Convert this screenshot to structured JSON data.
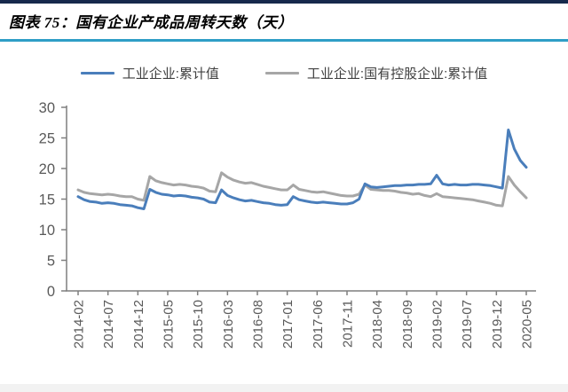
{
  "title": {
    "text": "图表 75：国有企业产成品周转天数（天）"
  },
  "colors": {
    "title_top_border": "#16294c",
    "title_underline": "#2f9ec6",
    "series_blue": "#4a7ebb",
    "series_gray": "#a6a6a6",
    "axis_line": "#7f7f7f",
    "axis_text": "#595959",
    "legend_text": "#404040",
    "bottom_strip": "#f2f2f2"
  },
  "chart_data": {
    "type": "line",
    "title": "国有企业产成品周转天数（天）",
    "legend_position": "top",
    "grid": false,
    "ylim": [
      0,
      30
    ],
    "yticks": [
      0,
      5,
      10,
      15,
      20,
      25,
      30
    ],
    "x_tick_interval": 5,
    "x_tick_labels": [
      "2014-02",
      "2014-07",
      "2014-12",
      "2015-05",
      "2015-10",
      "2016-03",
      "2016-08",
      "2017-01",
      "2017-06",
      "2017-11",
      "2018-04",
      "2018-09",
      "2019-02",
      "2019-07",
      "2019-12",
      "2020-05"
    ],
    "x": [
      "2014-02",
      "2014-03",
      "2014-04",
      "2014-05",
      "2014-06",
      "2014-07",
      "2014-08",
      "2014-09",
      "2014-10",
      "2014-11",
      "2014-12",
      "2015-01",
      "2015-02",
      "2015-03",
      "2015-04",
      "2015-05",
      "2015-06",
      "2015-07",
      "2015-08",
      "2015-09",
      "2015-10",
      "2015-11",
      "2015-12",
      "2016-01",
      "2016-02",
      "2016-03",
      "2016-04",
      "2016-05",
      "2016-06",
      "2016-07",
      "2016-08",
      "2016-09",
      "2016-10",
      "2016-11",
      "2016-12",
      "2017-01",
      "2017-02",
      "2017-03",
      "2017-04",
      "2017-05",
      "2017-06",
      "2017-07",
      "2017-08",
      "2017-09",
      "2017-10",
      "2017-11",
      "2017-12",
      "2018-01",
      "2018-02",
      "2018-03",
      "2018-04",
      "2018-05",
      "2018-06",
      "2018-07",
      "2018-08",
      "2018-09",
      "2018-10",
      "2018-11",
      "2018-12",
      "2019-01",
      "2019-02",
      "2019-03",
      "2019-04",
      "2019-05",
      "2019-06",
      "2019-07",
      "2019-08",
      "2019-09",
      "2019-10",
      "2019-11",
      "2019-12",
      "2020-01",
      "2020-02",
      "2020-03",
      "2020-04",
      "2020-05"
    ],
    "series": [
      {
        "name": "工业企业:累计值",
        "color": "#4a7ebb",
        "values": [
          15.4,
          14.9,
          14.6,
          14.5,
          14.3,
          14.4,
          14.3,
          14.1,
          14.0,
          13.9,
          13.6,
          13.4,
          16.6,
          16.1,
          15.8,
          15.7,
          15.5,
          15.6,
          15.5,
          15.3,
          15.2,
          15.0,
          14.5,
          14.4,
          16.5,
          15.6,
          15.2,
          14.9,
          14.7,
          14.8,
          14.6,
          14.4,
          14.3,
          14.1,
          14.0,
          14.1,
          15.4,
          14.9,
          14.7,
          14.5,
          14.4,
          14.5,
          14.4,
          14.3,
          14.2,
          14.2,
          14.4,
          15.0,
          17.5,
          17.0,
          16.9,
          17.0,
          17.1,
          17.2,
          17.2,
          17.3,
          17.3,
          17.4,
          17.4,
          17.5,
          18.9,
          17.5,
          17.3,
          17.4,
          17.3,
          17.3,
          17.4,
          17.4,
          17.3,
          17.2,
          17.0,
          16.8,
          26.3,
          23.2,
          21.3,
          20.2
        ]
      },
      {
        "name": "工业企业:国有控股企业:累计值",
        "color": "#a6a6a6",
        "values": [
          16.5,
          16.1,
          15.9,
          15.8,
          15.7,
          15.8,
          15.7,
          15.5,
          15.4,
          15.4,
          15.0,
          14.8,
          18.7,
          18.0,
          17.7,
          17.5,
          17.3,
          17.4,
          17.3,
          17.1,
          17.0,
          16.8,
          16.3,
          16.2,
          19.3,
          18.6,
          18.1,
          17.8,
          17.6,
          17.7,
          17.4,
          17.1,
          16.9,
          16.7,
          16.5,
          16.5,
          17.3,
          16.6,
          16.4,
          16.2,
          16.1,
          16.2,
          16.0,
          15.8,
          15.6,
          15.5,
          15.5,
          15.8,
          17.3,
          16.6,
          16.5,
          16.4,
          16.4,
          16.3,
          16.1,
          16.0,
          15.8,
          15.9,
          15.6,
          15.4,
          15.9,
          15.4,
          15.3,
          15.2,
          15.1,
          15.0,
          14.9,
          14.7,
          14.5,
          14.3,
          14.0,
          13.9,
          18.7,
          17.3,
          16.2,
          15.2
        ]
      }
    ]
  }
}
